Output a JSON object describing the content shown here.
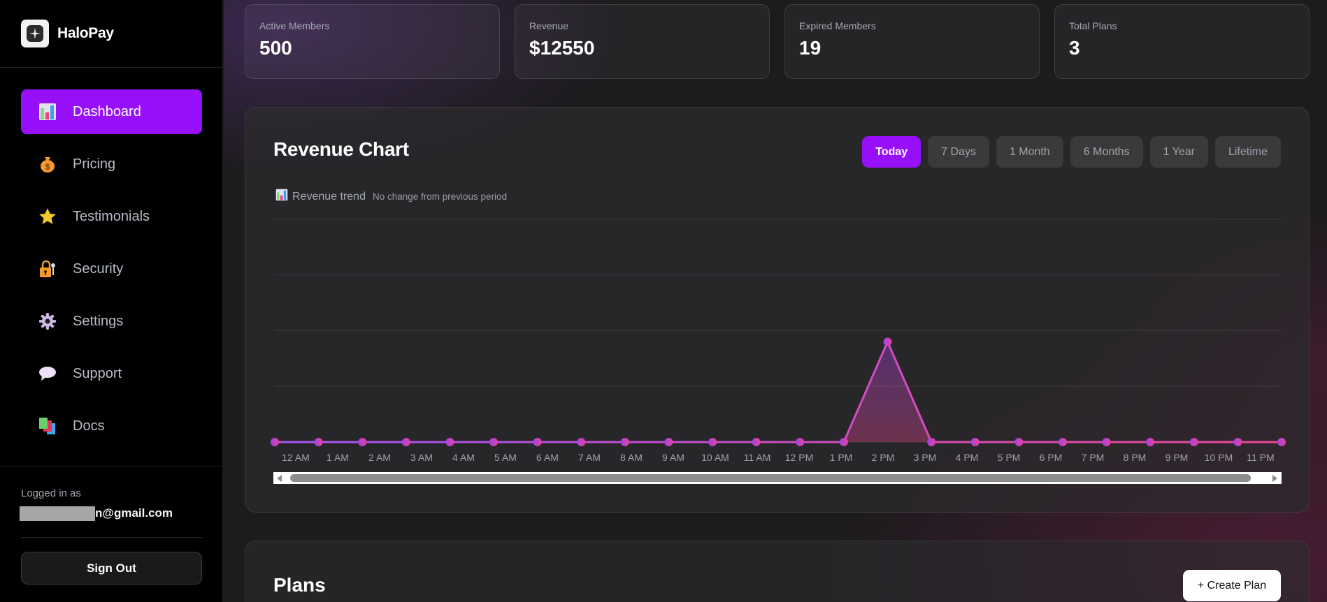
{
  "app": {
    "name": "HaloPay"
  },
  "sidebar": {
    "items": [
      {
        "label": "Dashboard",
        "icon": "bar-chart-icon",
        "active": true
      },
      {
        "label": "Pricing",
        "icon": "money-bag-icon",
        "active": false
      },
      {
        "label": "Testimonials",
        "icon": "star-icon",
        "active": false
      },
      {
        "label": "Security",
        "icon": "lock-key-icon",
        "active": false
      },
      {
        "label": "Settings",
        "icon": "gear-icon",
        "active": false
      },
      {
        "label": "Support",
        "icon": "speech-bubble-icon",
        "active": false
      },
      {
        "label": "Docs",
        "icon": "books-icon",
        "active": false
      }
    ],
    "footer": {
      "logged_in_label": "Logged in as",
      "email_visible": "n@gmail.com",
      "sign_out_label": "Sign Out"
    }
  },
  "stats": [
    {
      "label": "Active Members",
      "value": "500"
    },
    {
      "label": "Revenue",
      "value": "$12550"
    },
    {
      "label": "Expired Members",
      "value": "19"
    },
    {
      "label": "Total Plans",
      "value": "3"
    }
  ],
  "revenue_chart": {
    "title": "Revenue Chart",
    "ranges": [
      {
        "label": "Today",
        "active": true
      },
      {
        "label": "7 Days",
        "active": false
      },
      {
        "label": "1 Month",
        "active": false
      },
      {
        "label": "6 Months",
        "active": false
      },
      {
        "label": "1 Year",
        "active": false
      },
      {
        "label": "Lifetime",
        "active": false
      }
    ],
    "trend_label": "Revenue trend",
    "trend_note": "No change from previous period"
  },
  "plans": {
    "title": "Plans",
    "create_label": "+ Create Plan"
  },
  "colors": {
    "accent": "#9810fa",
    "line_start": "#a855f7",
    "line_end": "#ec4899"
  },
  "chart_data": {
    "type": "area",
    "title": "Revenue Chart",
    "subtitle": "Revenue trend — No change from previous period",
    "xlabel": "",
    "ylabel": "",
    "categories": [
      "12 AM",
      "1 AM",
      "2 AM",
      "3 AM",
      "4 AM",
      "5 AM",
      "6 AM",
      "7 AM",
      "8 AM",
      "9 AM",
      "10 AM",
      "11 AM",
      "12 PM",
      "1 PM",
      "2 PM",
      "3 PM",
      "4 PM",
      "5 PM",
      "6 PM",
      "7 PM",
      "8 PM",
      "9 PM",
      "10 PM",
      "11 PM"
    ],
    "values": [
      0,
      0,
      0,
      0,
      0,
      0,
      0,
      0,
      0,
      0,
      0,
      0,
      0,
      0,
      1.8,
      0,
      0,
      0,
      0,
      0,
      0,
      0,
      0,
      0
    ],
    "ylim": [
      0,
      4
    ],
    "y_axis_labels_visible": false,
    "grid": true,
    "gridlines": 5,
    "legend": "none",
    "note": "Y-axis unlabeled; peak value relative (~45% of plot height) at 2 PM"
  }
}
